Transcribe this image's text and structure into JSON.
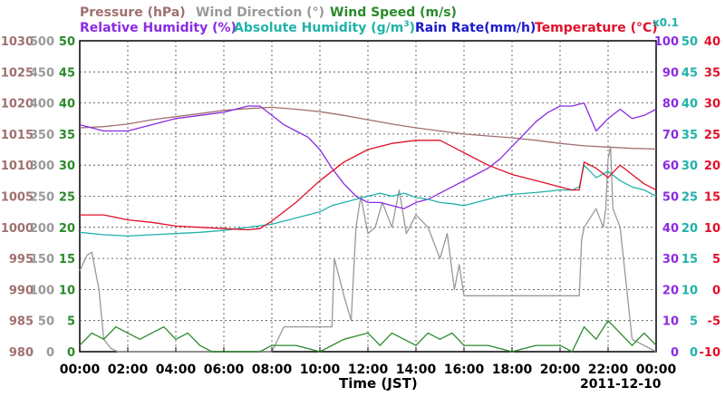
{
  "header": {
    "row1": [
      {
        "text": "Pressure (hPa)",
        "color": "#a07070"
      },
      {
        "text": "Wind Direction (°)",
        "color": "#999999"
      },
      {
        "text": "Wind Speed (m/s)",
        "color": "#2a8a2a"
      }
    ],
    "row2": [
      {
        "text": "Relative Humidity (%)",
        "color": "#8a2be2"
      },
      {
        "text": "Absolute Humidity (g/m",
        "sup": "3",
        "tail": ")",
        "color": "#20b2aa"
      },
      {
        "text": "Rain Rate(mm/h)",
        "color": "#1a1acc"
      },
      {
        "text": "Temperature (°C)",
        "color": "#e0102a"
      }
    ],
    "x01": {
      "text": "x0.1",
      "color": "#20b2aa"
    }
  },
  "footer": {
    "xlabel": "Time (JST)",
    "date": "2011-12-10"
  },
  "chart_data": {
    "type": "line",
    "xlabel": "Time (JST)",
    "x_ticks": [
      "00:00",
      "02:00",
      "04:00",
      "06:00",
      "08:00",
      "10:00",
      "12:00",
      "14:00",
      "16:00",
      "18:00",
      "20:00",
      "22:00",
      "00:00"
    ],
    "xlim_hours": [
      0,
      24
    ],
    "grid": true,
    "axes": {
      "pressure": {
        "label": "Pressure (hPa)",
        "color": "#a07070",
        "ticks": [
          "1030",
          "1025",
          "1020",
          "1015",
          "1010",
          "1005",
          "1000",
          "995",
          "990",
          "985",
          "980"
        ],
        "range": [
          980,
          1030
        ]
      },
      "wind_direction": {
        "label": "Wind Direction (°)",
        "color": "#999999",
        "ticks": [
          "500",
          "450",
          "400",
          "350",
          "300",
          "250",
          "200",
          "150",
          "100",
          "50",
          "0"
        ],
        "range": [
          0,
          500
        ]
      },
      "wind_speed": {
        "label": "Wind Speed (m/s)",
        "color": "#2a8a2a",
        "ticks": [
          "50",
          "45",
          "40",
          "35",
          "30",
          "25",
          "20",
          "15",
          "10",
          "5",
          "0"
        ],
        "range": [
          0,
          50
        ]
      },
      "relative_humidity": {
        "label": "Relative Humidity (%)",
        "color": "#8a2be2",
        "ticks": [
          "100",
          "90",
          "80",
          "70",
          "60",
          "50",
          "40",
          "30",
          "20",
          "10",
          "0"
        ],
        "range": [
          0,
          100
        ]
      },
      "absolute_humidity": {
        "label": "Absolute Humidity (g/m3) x0.1",
        "color": "#20b2aa",
        "ticks": [
          "50",
          "45",
          "40",
          "35",
          "30",
          "25",
          "20",
          "15",
          "10",
          "5",
          "0"
        ],
        "range": [
          0,
          50
        ]
      },
      "rain_rate": {
        "label": "Rain Rate(mm/h)",
        "color": "#1a1acc",
        "range": [
          0,
          50
        ]
      },
      "temperature": {
        "label": "Temperature (°C)",
        "color": "#e0102a",
        "ticks": [
          "40",
          "35",
          "30",
          "25",
          "20",
          "15",
          "10",
          "5",
          "0",
          "-5",
          "-10"
        ],
        "range": [
          -10,
          40
        ]
      }
    },
    "series": [
      {
        "name": "Pressure (hPa)",
        "axis": "pressure",
        "color": "#a07070",
        "x": [
          0,
          1,
          2,
          3,
          4,
          5,
          6,
          7,
          8,
          9,
          10,
          11,
          12,
          13,
          14,
          15,
          16,
          17,
          18,
          19,
          20,
          21,
          22,
          23,
          24
        ],
        "y": [
          1016.0,
          1016.2,
          1016.6,
          1017.3,
          1017.8,
          1018.3,
          1018.8,
          1019.1,
          1019.3,
          1019.0,
          1018.6,
          1018.0,
          1017.3,
          1016.6,
          1016.0,
          1015.5,
          1015.0,
          1014.7,
          1014.4,
          1014.0,
          1013.5,
          1013.1,
          1012.9,
          1012.7,
          1012.6
        ]
      },
      {
        "name": "Wind Direction (°)",
        "axis": "wind_direction",
        "color": "#999999",
        "x": [
          0,
          0.3,
          0.5,
          0.8,
          1.0,
          1.3,
          1.6,
          2.0,
          4.0,
          7.0,
          8.0,
          8.5,
          10.5,
          10.6,
          11.0,
          11.3,
          11.5,
          11.7,
          12.0,
          12.3,
          12.6,
          13.0,
          13.3,
          13.6,
          14.0,
          14.5,
          15.0,
          15.3,
          15.6,
          15.8,
          16.0,
          16.5,
          20.8,
          20.9,
          21.0,
          21.5,
          21.8,
          21.9,
          22.0,
          22.1,
          22.2,
          22.5,
          23.0,
          24.0
        ],
        "y": [
          130,
          155,
          160,
          100,
          20,
          5,
          0,
          0,
          0,
          0,
          0,
          40,
          40,
          150,
          90,
          50,
          200,
          250,
          190,
          200,
          240,
          200,
          260,
          190,
          220,
          200,
          150,
          190,
          100,
          140,
          90,
          90,
          90,
          180,
          200,
          230,
          200,
          230,
          310,
          330,
          230,
          200,
          20,
          0
        ]
      },
      {
        "name": "Wind Speed (m/s)",
        "axis": "wind_speed",
        "color": "#2a8a2a",
        "x": [
          0,
          0.5,
          1.0,
          1.5,
          2.0,
          2.5,
          3.0,
          3.5,
          4.0,
          4.5,
          5.0,
          5.5,
          6.0,
          6.5,
          7.0,
          7.5,
          8.0,
          9.0,
          10.0,
          11.0,
          12.0,
          12.5,
          13.0,
          13.5,
          14.0,
          14.5,
          15.0,
          15.5,
          16.0,
          17.0,
          18.0,
          19.0,
          20.0,
          20.5,
          21.0,
          21.5,
          22.0,
          22.5,
          23.0,
          23.5,
          24.0
        ],
        "y": [
          1,
          3,
          2,
          4,
          3,
          2,
          3,
          4,
          2,
          3,
          1,
          0,
          0,
          0,
          0,
          0,
          1,
          1,
          0,
          2,
          3,
          1,
          3,
          2,
          1,
          3,
          2,
          3,
          1,
          1,
          0,
          1,
          1,
          0,
          4,
          2,
          5,
          3,
          1,
          3,
          1
        ]
      },
      {
        "name": "Relative Humidity (%)",
        "axis": "relative_humidity",
        "color": "#8a2be2",
        "x": [
          0,
          1,
          2,
          3,
          4,
          5,
          6,
          7,
          7.5,
          8,
          8.5,
          9,
          9.5,
          10,
          10.5,
          11,
          11.5,
          12,
          12.5,
          13,
          13.5,
          14,
          14.5,
          15,
          15.5,
          16,
          16.5,
          17,
          17.5,
          18,
          18.5,
          19,
          19.5,
          20,
          20.5,
          21,
          21.5,
          22,
          22.5,
          23,
          23.5,
          24
        ],
        "y": [
          73,
          71,
          71,
          73,
          75,
          76,
          77,
          79,
          79,
          76,
          73,
          71,
          69,
          65,
          59,
          54,
          50,
          48,
          48,
          47,
          46,
          48,
          49,
          51,
          53,
          55,
          57,
          59,
          62,
          66,
          70,
          74,
          77,
          79,
          79,
          80,
          71,
          75,
          78,
          75,
          76,
          78
        ]
      },
      {
        "name": "Absolute Humidity (g/m3)",
        "axis": "absolute_humidity",
        "color": "#20b2aa",
        "x": [
          0,
          1,
          2,
          3,
          4,
          5,
          6,
          7,
          8,
          9,
          10,
          10.5,
          11,
          11.5,
          12,
          12.5,
          13,
          13.5,
          14,
          14.5,
          15,
          15.5,
          16,
          16.5,
          17,
          17.5,
          18,
          19,
          20,
          20.5,
          20.8,
          21,
          21.5,
          22,
          22.5,
          23,
          23.5,
          24
        ],
        "y": [
          19.2,
          18.8,
          18.6,
          18.8,
          19.0,
          19.2,
          19.5,
          20.0,
          20.5,
          21.5,
          22.5,
          23.5,
          24.0,
          24.5,
          25.0,
          25.5,
          25.0,
          25.5,
          24.8,
          24.5,
          24.0,
          23.8,
          23.5,
          24.0,
          24.5,
          25.0,
          25.3,
          25.6,
          26.0,
          26.0,
          26.5,
          30.0,
          28.0,
          29.0,
          27.5,
          26.5,
          26.0,
          25.0
        ]
      },
      {
        "name": "Temperature (°C)",
        "axis": "temperature",
        "color": "#e0102a",
        "x": [
          0,
          1,
          2,
          3,
          4,
          5,
          6,
          7,
          7.5,
          8,
          9,
          10,
          11,
          12,
          13,
          14,
          15,
          16,
          17,
          18,
          19,
          20,
          20.5,
          20.8,
          21.0,
          21.5,
          22.0,
          22.5,
          23.0,
          23.5,
          24.0
        ],
        "y": [
          12.0,
          12.0,
          11.2,
          10.8,
          10.2,
          10.0,
          9.8,
          9.6,
          9.8,
          11.0,
          14.0,
          17.5,
          20.5,
          22.5,
          23.5,
          24.0,
          24.0,
          22.0,
          20.0,
          18.5,
          17.5,
          16.5,
          16.0,
          16.0,
          20.5,
          19.5,
          18.0,
          20.0,
          18.5,
          17.0,
          16.0
        ]
      }
    ]
  }
}
